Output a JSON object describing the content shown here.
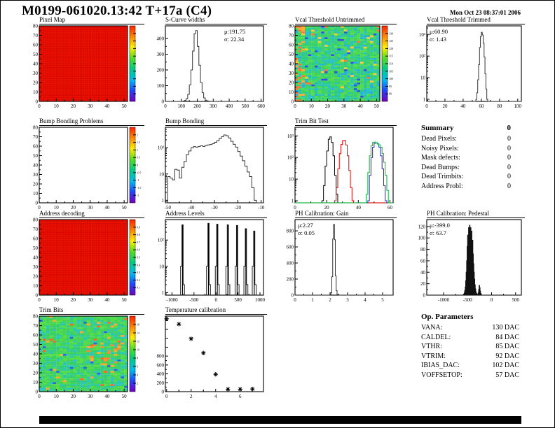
{
  "page": {
    "title": "M0199-061020.13:42 T+17a (C4)",
    "timestamp": "Mon Oct 23 08:37:01 2006"
  },
  "summary": {
    "heading": "Summary",
    "heading_value": "0",
    "rows": [
      {
        "label": "Dead Pixels:",
        "value": "0"
      },
      {
        "label": "Noisy Pixels:",
        "value": "0"
      },
      {
        "label": "Mask defects:",
        "value": "0"
      },
      {
        "label": "Dead Bumps:",
        "value": "0"
      },
      {
        "label": "Dead Trimbits:",
        "value": "0"
      },
      {
        "label": "Address Probl:",
        "value": "0"
      }
    ]
  },
  "op_parameters": {
    "heading": "Op. Parameters",
    "rows": [
      {
        "label": "VANA:",
        "value": "130 DAC"
      },
      {
        "label": "CALDEL:",
        "value": "84 DAC"
      },
      {
        "label": "VTHR:",
        "value": "85 DAC"
      },
      {
        "label": "VTRIM:",
        "value": "92 DAC"
      },
      {
        "label": "IBIAS_DAC:",
        "value": "102 DAC"
      },
      {
        "label": "VOFFSETOP:",
        "value": "57 DAC"
      }
    ]
  },
  "chart_data": [
    {
      "id": "pixel-map",
      "type": "heatmap",
      "title": "Pixel Map",
      "fill_style": "uniform",
      "base_color": "#ee1100",
      "grid_color": "#bb0000",
      "xlim": [
        0,
        52
      ],
      "ylim": [
        0,
        80
      ],
      "x_ticks": [
        0,
        10,
        20,
        30,
        40,
        50
      ],
      "y_ticks": [
        0,
        10,
        20,
        30,
        40,
        50,
        60,
        70,
        80
      ],
      "colorbar": {
        "labels": [],
        "tick_count": 9,
        "colors": [
          "#ff2200",
          "#ff8800",
          "#ffee00",
          "#55dd22",
          "#00cc88",
          "#00bbee",
          "#2244ff",
          "#7700bb"
        ]
      }
    },
    {
      "id": "scurve-widths",
      "type": "hist",
      "title": "S-Curve widths",
      "stats": {
        "mu": "191.75",
        "sigma": "22.34"
      },
      "stats_pos": "right",
      "yscale": "linear",
      "xlim": [
        0,
        615
      ],
      "ylim": [
        0,
        480
      ],
      "x_ticks": [
        0,
        100,
        200,
        300,
        400,
        500,
        600
      ],
      "y_ticks": [
        0,
        100,
        200,
        300,
        400
      ],
      "color": "#333333",
      "x0": 110,
      "dx": 10,
      "counts": [
        2,
        6,
        18,
        45,
        105,
        200,
        320,
        430,
        450,
        350,
        230,
        120,
        55,
        22,
        8,
        3,
        1
      ]
    },
    {
      "id": "vcal-threshold-untrimmed",
      "type": "heatmap",
      "title": "Vcal Threshold Untrimmed",
      "fill_style": "noise-threshold",
      "xlim": [
        0,
        52
      ],
      "ylim": [
        0,
        80
      ],
      "x_ticks": [
        0,
        10,
        20,
        30,
        40,
        50
      ],
      "y_ticks": [
        0,
        10,
        20,
        30,
        40,
        50,
        60,
        70,
        80
      ],
      "colorbar": {
        "labels": [
          "130",
          "125",
          "120",
          "115",
          "110",
          "105",
          "100",
          "95",
          "90"
        ],
        "colors": [
          "#ff2200",
          "#ff8800",
          "#ffee00",
          "#55dd22",
          "#00cc88",
          "#00bbee",
          "#2244ff",
          "#7700bb"
        ]
      }
    },
    {
      "id": "vcal-threshold-trimmed",
      "type": "hist",
      "title": "Vcal Threshold Trimmed",
      "stats": {
        "mu": "60.90",
        "sigma": "1.43"
      },
      "stats_pos": "left",
      "yscale": "log",
      "xlim": [
        0,
        104
      ],
      "ylim": [
        0.8,
        2500
      ],
      "x_ticks": [
        0,
        20,
        40,
        60,
        80,
        100
      ],
      "y_ticks": [
        1,
        10,
        100,
        1000
      ],
      "y_tick_labels": [
        "1",
        "10",
        "10²",
        "10³"
      ],
      "color": "#333333",
      "x0": 54,
      "dx": 1,
      "counts": [
        1,
        2,
        8,
        40,
        250,
        800,
        1250,
        950,
        400,
        90,
        15,
        3,
        1
      ]
    },
    {
      "id": "bump-bonding-problems",
      "type": "heatmap",
      "title": "Bump Bonding Problems",
      "fill_style": "empty",
      "xlim": [
        0,
        52
      ],
      "ylim": [
        0,
        80
      ],
      "x_ticks": [
        0,
        10,
        20,
        30,
        40,
        50
      ],
      "y_ticks": [
        0,
        10,
        20,
        30,
        40,
        50,
        60,
        70,
        80
      ],
      "colorbar": {
        "labels": [
          "2",
          "1.5",
          "1",
          "0.5",
          "0",
          "-0.5",
          "-1",
          "-1.5",
          "-2"
        ],
        "colors": [
          "#ff2200",
          "#ff8800",
          "#ffee00",
          "#55dd22",
          "#00cc88",
          "#00bbee",
          "#2244ff",
          "#7700bb"
        ]
      }
    },
    {
      "id": "bump-bonding",
      "type": "hist",
      "title": "Bump Bonding",
      "yscale": "log",
      "xlim": [
        -51,
        -9
      ],
      "ylim": [
        0.8,
        600
      ],
      "x_ticks": [
        -50,
        -40,
        -30,
        -20,
        -10
      ],
      "y_ticks": [
        1,
        10,
        100
      ],
      "y_tick_labels": [
        "1",
        "10",
        "10²"
      ],
      "color": "#333333",
      "x0": -50,
      "dx": 1,
      "counts": [
        8,
        7,
        6,
        15,
        14,
        7,
        18,
        30,
        55,
        75,
        100,
        110,
        105,
        112,
        118,
        112,
        122,
        128,
        133,
        142,
        160,
        185,
        225,
        265,
        305,
        285,
        235,
        175,
        135,
        105,
        72,
        48,
        32,
        20,
        12,
        8,
        3,
        1
      ]
    },
    {
      "id": "trim-bit-test",
      "type": "multihist",
      "title": "Trim Bit Test",
      "yscale": "log",
      "xlim": [
        0,
        62
      ],
      "ylim": [
        0.8,
        2500
      ],
      "x_ticks": [
        0,
        20,
        40,
        60
      ],
      "y_ticks": [
        1,
        10,
        100,
        1000
      ],
      "y_tick_labels": [
        "1",
        "10",
        "10²",
        "10³"
      ],
      "series": [
        {
          "name": "trim-bit-0",
          "color": "#000000",
          "x0": 17,
          "dx": 1,
          "counts": [
            1,
            5,
            40,
            200,
            700,
            900,
            500,
            120,
            15,
            2
          ]
        },
        {
          "name": "trim-bit-1",
          "color": "#ee0000",
          "x0": 25,
          "dx": 1,
          "counts": [
            1,
            4,
            30,
            150,
            400,
            600,
            620,
            380,
            120,
            25,
            4,
            1
          ]
        },
        {
          "name": "trim-bit-2",
          "color": "#2222cc",
          "x0": 46,
          "dx": 1,
          "counts": [
            1,
            15,
            100,
            300,
            450,
            480,
            430,
            300,
            120,
            30,
            5,
            1
          ]
        },
        {
          "name": "trim-bit-3",
          "color": "#00bb33",
          "x0": 45,
          "dx": 1,
          "counts": [
            2,
            20,
            120,
            350,
            500,
            520,
            480,
            420,
            380,
            300,
            150,
            60,
            15,
            3
          ]
        }
      ]
    },
    {
      "id": "address-decoding",
      "type": "heatmap",
      "title": "Address decoding",
      "fill_style": "uniform",
      "base_color": "#ee1100",
      "grid_color": "#bb0000",
      "xlim": [
        0,
        52
      ],
      "ylim": [
        0,
        80
      ],
      "x_ticks": [
        0,
        10,
        20,
        30,
        40,
        50
      ],
      "y_ticks": [
        0,
        10,
        20,
        30,
        40,
        50,
        60,
        70,
        80
      ],
      "colorbar": {
        "labels": [
          "0.9",
          "0.8",
          "0.7",
          "0.6",
          "0.5",
          "0.4",
          "0.3",
          "0.2",
          "0.1"
        ],
        "colors": [
          "#ff2200",
          "#ff8800",
          "#ffee00",
          "#55dd22",
          "#00cc88",
          "#00bbee",
          "#2244ff",
          "#7700bb"
        ]
      }
    },
    {
      "id": "address-levels",
      "type": "spikes",
      "title": "Address Levels",
      "yscale": "log",
      "xlim": [
        -1150,
        1080
      ],
      "ylim": [
        0.8,
        600
      ],
      "x_ticks": [
        -1000,
        -500,
        0,
        500,
        1000
      ],
      "y_ticks": [
        1,
        10,
        100
      ],
      "y_tick_labels": [
        "1",
        "10",
        "10²"
      ],
      "color": "#222222",
      "spikes": [
        {
          "x": -760,
          "peak": 380
        },
        {
          "x": -170,
          "peak": 430
        },
        {
          "x": 30,
          "peak": 400
        },
        {
          "x": 270,
          "peak": 380
        },
        {
          "x": 480,
          "peak": 360
        },
        {
          "x": 680,
          "peak": 270
        },
        {
          "x": 870,
          "peak": 220
        }
      ]
    },
    {
      "id": "ph-calibration-gain",
      "type": "hist",
      "title": "PH Calibration: Gain",
      "stats": {
        "mu": "2.27",
        "sigma": "0.05"
      },
      "stats_pos": "left",
      "yscale": "linear",
      "xlim": [
        0,
        5.6
      ],
      "ylim": [
        0,
        940
      ],
      "x_ticks": [
        0,
        1,
        2,
        3,
        4,
        5
      ],
      "y_ticks": [
        0,
        200,
        400,
        600,
        800
      ],
      "color": "#333333",
      "x0": 1.95,
      "dx": 0.05,
      "counts": [
        2,
        8,
        30,
        230,
        700,
        880,
        690,
        240,
        55,
        8,
        2
      ]
    },
    {
      "id": "ph-calibration-pedestal",
      "type": "hist",
      "title": "PH Calibration: Pedestal",
      "stats": {
        "mu": "-399.0",
        "sigma": "63.7"
      },
      "stats_pos": "left",
      "yscale": "linear",
      "xlim": [
        -1350,
        620
      ],
      "ylim": [
        0,
        132
      ],
      "x_ticks": [
        -1000,
        -500,
        0,
        500
      ],
      "y_ticks": [
        0,
        20,
        40,
        60,
        80,
        100,
        120
      ],
      "color": "#111111",
      "filled": true,
      "x0": -590,
      "dx": 10,
      "counts": [
        1,
        2,
        4,
        8,
        14,
        25,
        40,
        60,
        85,
        105,
        95,
        118,
        108,
        122,
        112,
        118,
        102,
        112,
        90,
        96,
        72,
        55,
        40,
        28,
        18,
        11,
        6,
        3,
        2,
        1,
        1,
        4,
        10,
        17,
        13,
        7,
        3,
        1
      ]
    },
    {
      "id": "trim-bits",
      "type": "heatmap",
      "title": "Trim Bits",
      "fill_style": "noise-trim",
      "xlim": [
        0,
        52
      ],
      "ylim": [
        0,
        80
      ],
      "x_ticks": [
        0,
        10,
        20,
        30,
        40,
        50
      ],
      "y_ticks": [
        0,
        10,
        20,
        30,
        40,
        50,
        60,
        70,
        80
      ],
      "colorbar": {
        "labels": [
          "16",
          "14",
          "12",
          "10",
          "8",
          "6",
          "4",
          "2"
        ],
        "colors": [
          "#ff2200",
          "#ff8800",
          "#ffee00",
          "#55dd22",
          "#00cc88",
          "#00bbee",
          "#2244ff",
          "#7700bb"
        ]
      }
    },
    {
      "id": "temperature-calibration",
      "type": "scatter",
      "title": "Temperature calibration",
      "yscale": "linear",
      "xlim": [
        -0.1,
        7.9
      ],
      "ylim": [
        0,
        1700
      ],
      "x_ticks": [
        0,
        2,
        4,
        6
      ],
      "x_ticks_unlabeled": [
        1,
        3,
        5,
        7
      ],
      "y_ticks": [
        0,
        200,
        400,
        600,
        800
      ],
      "y_ticks_unlabeled": [
        1000,
        1200,
        1400,
        1600
      ],
      "marker": "asterisk",
      "color": "#000000",
      "points": [
        [
          0,
          1640
        ],
        [
          1,
          1520
        ],
        [
          2,
          1190
        ],
        [
          3,
          870
        ],
        [
          4,
          390
        ],
        [
          5,
          55
        ],
        [
          6,
          55
        ],
        [
          7,
          60
        ]
      ]
    }
  ]
}
